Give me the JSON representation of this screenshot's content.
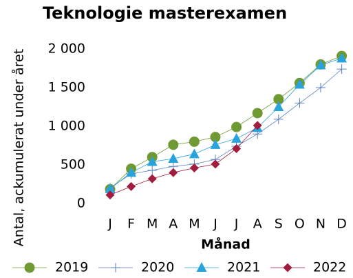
{
  "chart_data": {
    "type": "line",
    "title": "Teknologie masterexamen",
    "x_label": "Månad",
    "y_label": "Antal, ackumulerat under året",
    "categories": [
      "J",
      "F",
      "M",
      "A",
      "M",
      "J",
      "J",
      "A",
      "S",
      "O",
      "N",
      "D"
    ],
    "series": [
      {
        "name": "2019",
        "color": "#6f9a33",
        "marker": "circle",
        "values": [
          185,
          450,
          600,
          760,
          800,
          860,
          990,
          1170,
          1350,
          1560,
          1800,
          1910
        ]
      },
      {
        "name": "2020",
        "color": "#5b7fc0",
        "marker": "plus",
        "values": [
          200,
          384,
          430,
          480,
          510,
          570,
          740,
          900,
          1090,
          1300,
          1500,
          1740
        ]
      },
      {
        "name": "2021",
        "color": "#29a3db",
        "marker": "triangle",
        "values": [
          190,
          400,
          540,
          580,
          640,
          760,
          840,
          980,
          1250,
          1540,
          1790,
          1880
        ]
      },
      {
        "name": "2022",
        "color": "#a11c3d",
        "marker": "diamond",
        "values": [
          110,
          220,
          320,
          400,
          460,
          510,
          710,
          1010,
          null,
          null,
          null,
          null
        ]
      }
    ],
    "ylim": [
      0,
      2000
    ],
    "yticks": [
      0,
      500,
      {
        "value": 1000,
        "label": "1 000"
      },
      {
        "value": 1500,
        "label": "1 500"
      },
      {
        "value": 2000,
        "label": "2 000"
      }
    ],
    "legend": "bottom"
  }
}
